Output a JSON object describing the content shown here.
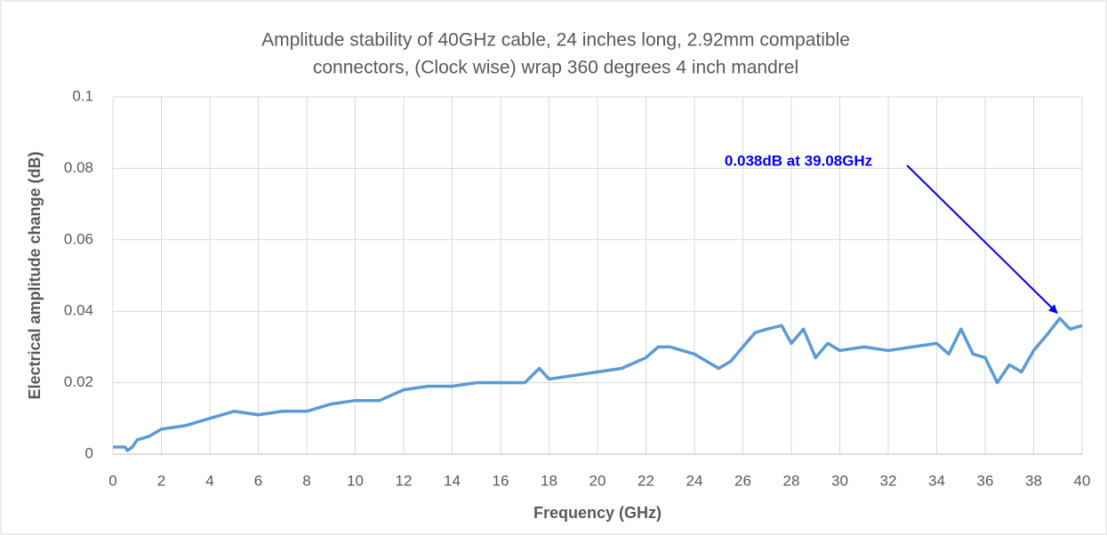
{
  "chart_data": {
    "type": "line",
    "title": [
      "Amplitude stability of 40GHz cable, 24 inches long, 2.92mm compatible",
      "connectors, (Clock wise) wrap 360 degrees 4 inch mandrel"
    ],
    "xlabel": "Frequency (GHz)",
    "ylabel": "Electrical amplitude change (dB)",
    "x": [
      0,
      0.5,
      0.6,
      0.8,
      1,
      1.5,
      2,
      3,
      4,
      5,
      6,
      7,
      8,
      9,
      10,
      11,
      12,
      13,
      14,
      15,
      16,
      17,
      17.6,
      18,
      19,
      20,
      21,
      22,
      22.5,
      23,
      24,
      24.5,
      25,
      25.5,
      26,
      26.5,
      27,
      27.6,
      28,
      28.5,
      29,
      29.5,
      30,
      31,
      32,
      33,
      34,
      34.5,
      35,
      35.5,
      36,
      36.5,
      37,
      37.5,
      38,
      38.5,
      39.08,
      39.5,
      40
    ],
    "series": [
      {
        "name": "Amplitude change",
        "color": "#5b9bd5",
        "values": [
          0.002,
          0.002,
          0.001,
          0.002,
          0.004,
          0.005,
          0.007,
          0.008,
          0.01,
          0.012,
          0.011,
          0.012,
          0.012,
          0.014,
          0.015,
          0.015,
          0.018,
          0.019,
          0.019,
          0.02,
          0.02,
          0.02,
          0.024,
          0.021,
          0.022,
          0.023,
          0.024,
          0.027,
          0.03,
          0.03,
          0.028,
          0.026,
          0.024,
          0.026,
          0.03,
          0.034,
          0.035,
          0.036,
          0.031,
          0.035,
          0.027,
          0.031,
          0.029,
          0.03,
          0.029,
          0.03,
          0.031,
          0.028,
          0.035,
          0.028,
          0.027,
          0.02,
          0.025,
          0.023,
          0.029,
          0.033,
          0.038,
          0.035,
          0.036
        ]
      }
    ],
    "xlim": [
      0,
      40
    ],
    "xticks": [
      0,
      2,
      4,
      6,
      8,
      10,
      12,
      14,
      16,
      18,
      20,
      22,
      24,
      26,
      28,
      30,
      32,
      34,
      36,
      38,
      40
    ],
    "ylim": [
      0,
      0.1
    ],
    "yticks": [
      0,
      0.02,
      0.04,
      0.06,
      0.08,
      0.1
    ],
    "grid": true,
    "annotations": [
      {
        "text": "0.038dB at 39.08GHz",
        "x": 39.08,
        "y": 0.038,
        "color": "#0000ff"
      }
    ]
  }
}
